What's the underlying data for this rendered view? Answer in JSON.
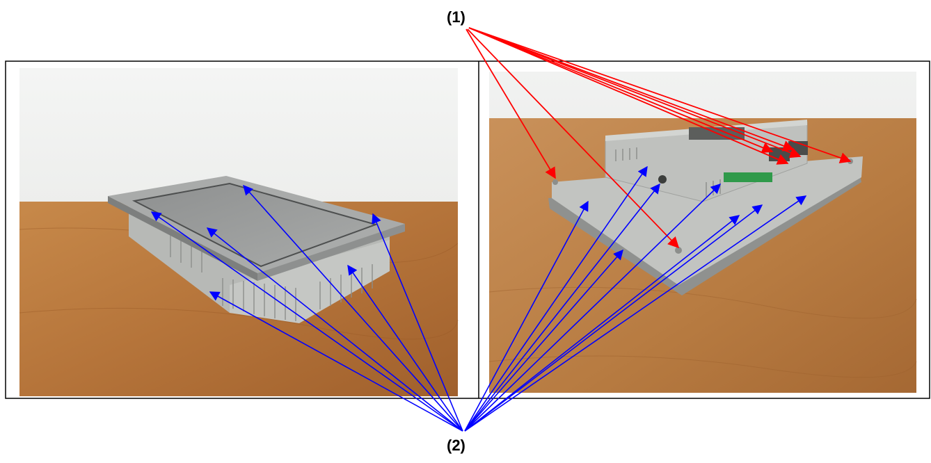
{
  "labels": {
    "callout_1": "(1)",
    "callout_2": "(2)"
  },
  "colors": {
    "callout_1_arrows": "#ff0000",
    "callout_2_arrows": "#0000ff",
    "frame": "#000000"
  },
  "photos": {
    "left": "front-three-quarter-view-of-hmi-panel-on-wooden-table",
    "right": "rear-view-of-hmi-panel-on-wooden-table"
  }
}
